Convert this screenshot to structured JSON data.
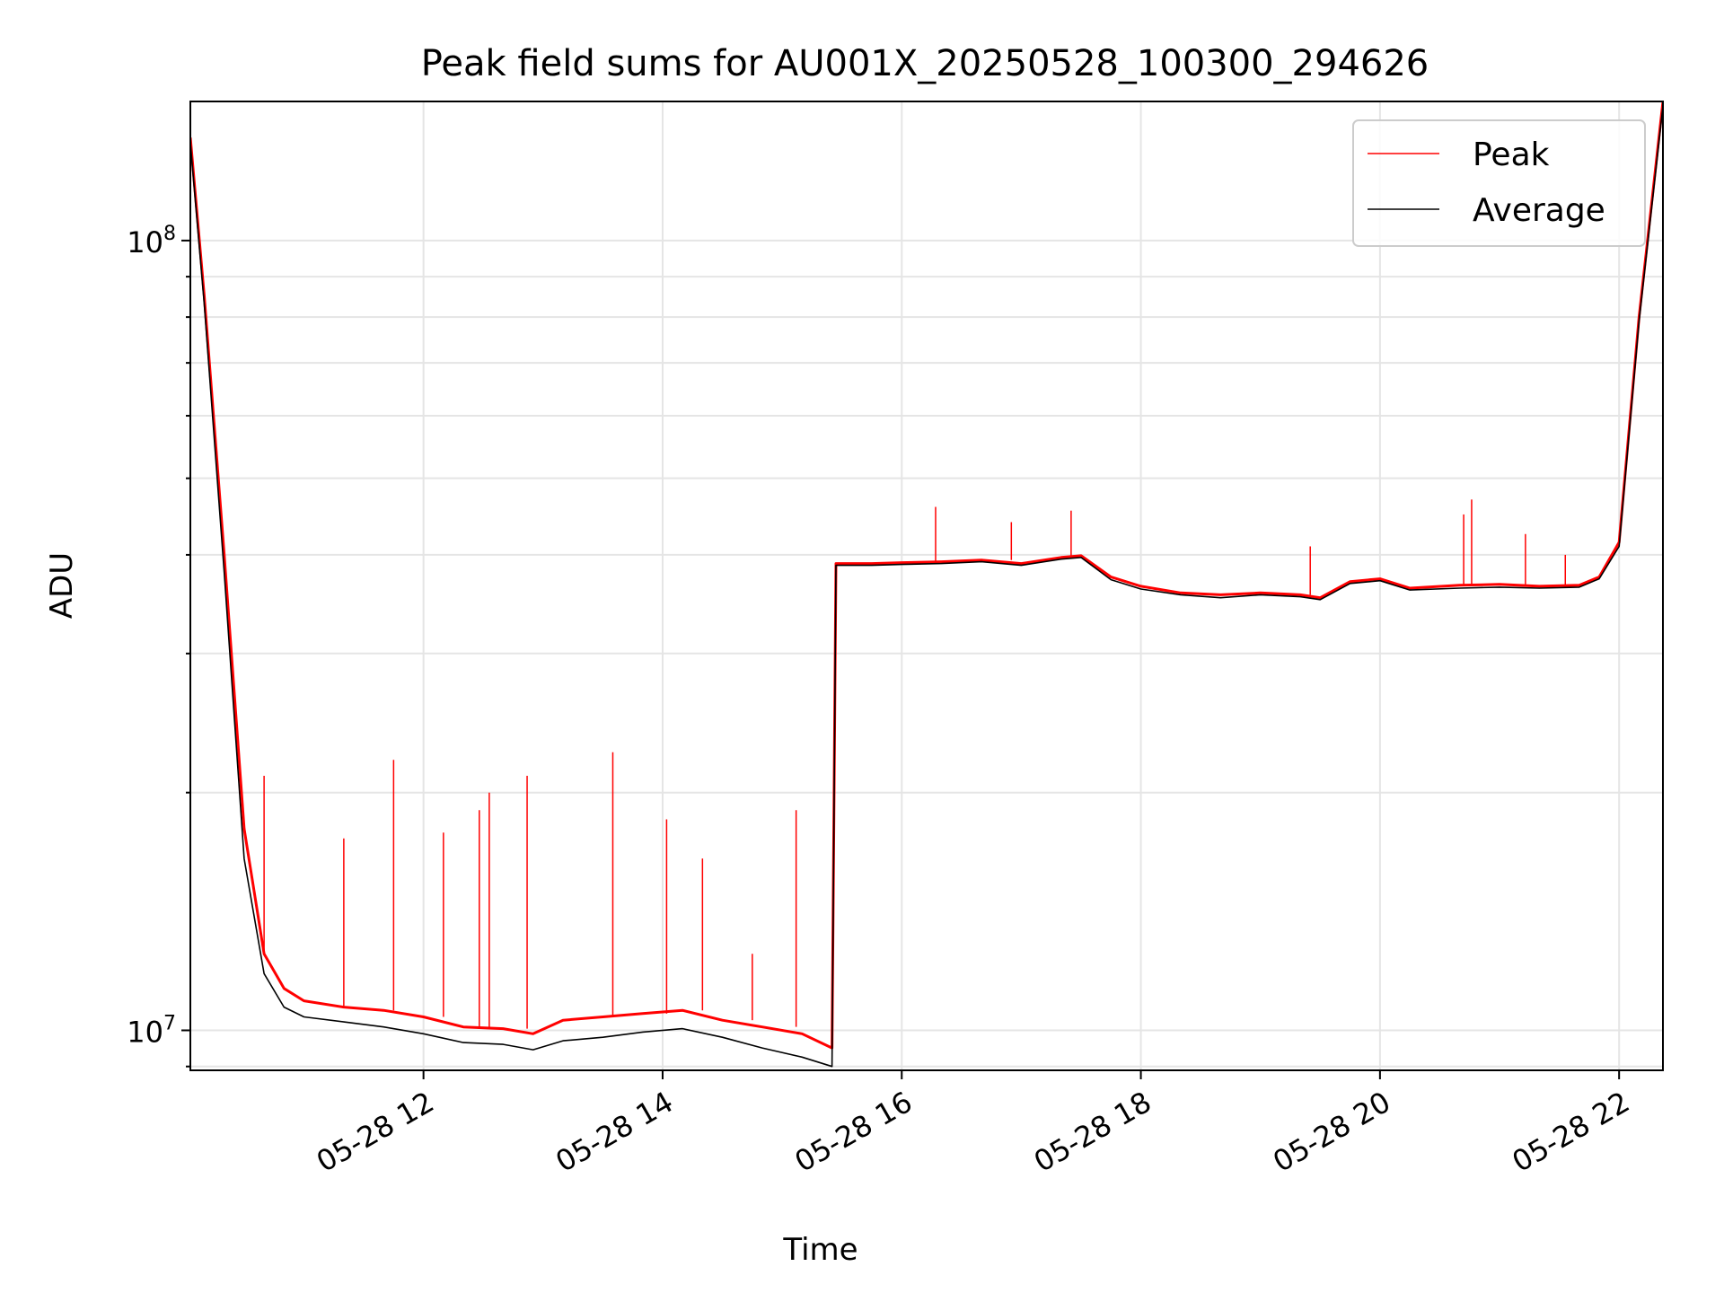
{
  "chart_data": {
    "type": "line",
    "title": "Peak field sums for AU001X_20250528_100300_294626",
    "xlabel": "Time",
    "ylabel": "ADU",
    "yscale": "log",
    "xlim": [
      "2025-05-28 10:03",
      "2025-05-28 22:22"
    ],
    "ylim": [
      8900000.0,
      150000000.0
    ],
    "grid": true,
    "legend_position": "upper right",
    "x_ticks": [
      {
        "value": "2025-05-28 12:00",
        "label": "05-28 12"
      },
      {
        "value": "2025-05-28 14:00",
        "label": "05-28 14"
      },
      {
        "value": "2025-05-28 16:00",
        "label": "05-28 16"
      },
      {
        "value": "2025-05-28 18:00",
        "label": "05-28 18"
      },
      {
        "value": "2025-05-28 20:00",
        "label": "05-28 20"
      },
      {
        "value": "2025-05-28 22:00",
        "label": "05-28 22"
      }
    ],
    "y_ticks": [
      {
        "value": 10000000,
        "base": "10",
        "exp": "7"
      },
      {
        "value": 100000000,
        "base": "10",
        "exp": "8"
      }
    ],
    "series": [
      {
        "name": "Peak",
        "color": "#ff0000",
        "x": [
          "2025-05-28 10:03",
          "2025-05-28 10:10",
          "2025-05-28 10:20",
          "2025-05-28 10:30",
          "2025-05-28 10:40",
          "2025-05-28 10:50",
          "2025-05-28 11:00",
          "2025-05-28 11:20",
          "2025-05-28 11:40",
          "2025-05-28 12:00",
          "2025-05-28 12:20",
          "2025-05-28 12:40",
          "2025-05-28 12:55",
          "2025-05-28 13:10",
          "2025-05-28 13:30",
          "2025-05-28 13:50",
          "2025-05-28 14:10",
          "2025-05-28 14:30",
          "2025-05-28 14:50",
          "2025-05-28 15:10",
          "2025-05-28 15:25",
          "2025-05-28 15:27",
          "2025-05-28 15:45",
          "2025-05-28 16:00",
          "2025-05-28 16:20",
          "2025-05-28 16:40",
          "2025-05-28 17:00",
          "2025-05-28 17:20",
          "2025-05-28 17:30",
          "2025-05-28 17:45",
          "2025-05-28 18:00",
          "2025-05-28 18:20",
          "2025-05-28 18:40",
          "2025-05-28 19:00",
          "2025-05-28 19:20",
          "2025-05-28 19:30",
          "2025-05-28 19:45",
          "2025-05-28 20:00",
          "2025-05-28 20:15",
          "2025-05-28 20:40",
          "2025-05-28 21:00",
          "2025-05-28 21:20",
          "2025-05-28 21:40",
          "2025-05-28 21:50",
          "2025-05-28 22:00",
          "2025-05-28 22:10",
          "2025-05-28 22:22"
        ],
        "values": [
          135000000,
          85000000,
          40000000,
          18000000,
          12500000,
          11300000,
          10900000,
          10700000,
          10600000,
          10400000,
          10100000,
          10050000,
          9900000,
          10300000,
          10400000,
          10500000,
          10600000,
          10300000,
          10100000,
          9900000,
          9500000,
          39000000,
          39000000,
          39100000,
          39200000,
          39400000,
          39000000,
          39700000,
          39900000,
          37500000,
          36500000,
          35800000,
          35600000,
          35800000,
          35600000,
          35300000,
          37000000,
          37300000,
          36300000,
          36600000,
          36700000,
          36500000,
          36600000,
          37500000,
          41500000,
          80000000,
          150000000
        ],
        "spikes": [
          {
            "x": "2025-05-28 10:40",
            "y": 21000000
          },
          {
            "x": "2025-05-28 11:20",
            "y": 17500000
          },
          {
            "x": "2025-05-28 11:45",
            "y": 22000000
          },
          {
            "x": "2025-05-28 12:10",
            "y": 17800000
          },
          {
            "x": "2025-05-28 12:28",
            "y": 19000000
          },
          {
            "x": "2025-05-28 12:33",
            "y": 20000000
          },
          {
            "x": "2025-05-28 12:52",
            "y": 21000000
          },
          {
            "x": "2025-05-28 13:35",
            "y": 22500000
          },
          {
            "x": "2025-05-28 14:02",
            "y": 18500000
          },
          {
            "x": "2025-05-28 14:20",
            "y": 16500000
          },
          {
            "x": "2025-05-28 14:45",
            "y": 12500000
          },
          {
            "x": "2025-05-28 15:07",
            "y": 19000000
          },
          {
            "x": "2025-05-28 16:17",
            "y": 46000000
          },
          {
            "x": "2025-05-28 16:55",
            "y": 44000000
          },
          {
            "x": "2025-05-28 17:25",
            "y": 45500000
          },
          {
            "x": "2025-05-28 19:25",
            "y": 41000000
          },
          {
            "x": "2025-05-28 20:42",
            "y": 45000000
          },
          {
            "x": "2025-05-28 20:46",
            "y": 47000000
          },
          {
            "x": "2025-05-28 21:13",
            "y": 42500000
          },
          {
            "x": "2025-05-28 21:33",
            "y": 40000000
          }
        ]
      },
      {
        "name": "Average",
        "color": "#000000",
        "x": [
          "2025-05-28 10:03",
          "2025-05-28 10:10",
          "2025-05-28 10:20",
          "2025-05-28 10:30",
          "2025-05-28 10:40",
          "2025-05-28 10:50",
          "2025-05-28 11:00",
          "2025-05-28 11:20",
          "2025-05-28 11:40",
          "2025-05-28 12:00",
          "2025-05-28 12:20",
          "2025-05-28 12:40",
          "2025-05-28 12:55",
          "2025-05-28 13:10",
          "2025-05-28 13:30",
          "2025-05-28 13:50",
          "2025-05-28 14:10",
          "2025-05-28 14:30",
          "2025-05-28 14:50",
          "2025-05-28 15:10",
          "2025-05-28 15:25",
          "2025-05-28 15:27",
          "2025-05-28 15:45",
          "2025-05-28 16:00",
          "2025-05-28 16:20",
          "2025-05-28 16:40",
          "2025-05-28 17:00",
          "2025-05-28 17:20",
          "2025-05-28 17:30",
          "2025-05-28 17:45",
          "2025-05-28 18:00",
          "2025-05-28 18:20",
          "2025-05-28 18:40",
          "2025-05-28 19:00",
          "2025-05-28 19:20",
          "2025-05-28 19:30",
          "2025-05-28 19:45",
          "2025-05-28 20:00",
          "2025-05-28 20:15",
          "2025-05-28 20:40",
          "2025-05-28 21:00",
          "2025-05-28 21:20",
          "2025-05-28 21:40",
          "2025-05-28 21:50",
          "2025-05-28 22:00",
          "2025-05-28 22:10",
          "2025-05-28 22:22"
        ],
        "values": [
          133000000,
          83000000,
          38000000,
          16500000,
          11800000,
          10700000,
          10400000,
          10250000,
          10100000,
          9900000,
          9650000,
          9600000,
          9450000,
          9700000,
          9800000,
          9950000,
          10050000,
          9800000,
          9500000,
          9250000,
          9000000,
          38800000,
          38800000,
          38900000,
          39000000,
          39200000,
          38800000,
          39500000,
          39700000,
          37200000,
          36200000,
          35600000,
          35300000,
          35600000,
          35400000,
          35100000,
          36800000,
          37100000,
          36100000,
          36300000,
          36400000,
          36300000,
          36400000,
          37300000,
          41000000,
          79000000,
          148000000
        ],
        "spikes": []
      }
    ]
  }
}
